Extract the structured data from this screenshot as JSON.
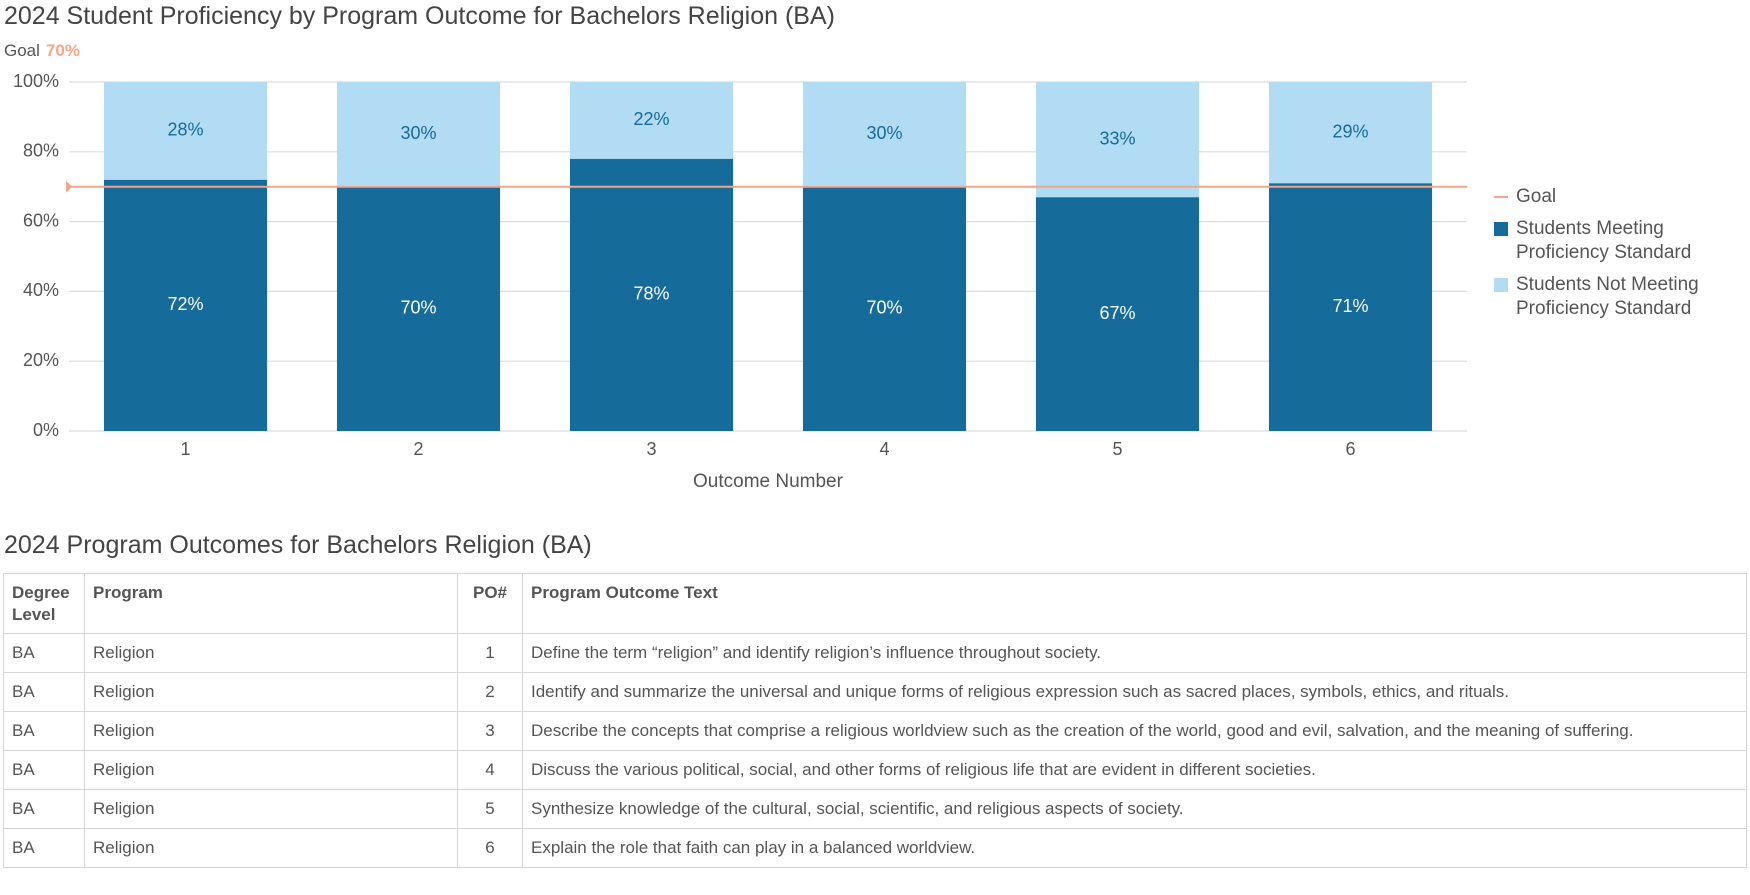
{
  "chart_data": {
    "type": "stacked_bar",
    "title": "2024 Student Proficiency by Program Outcome for Bachelors Religion (BA)",
    "x_label": "Outcome Number",
    "categories": [
      "1",
      "2",
      "3",
      "4",
      "5",
      "6"
    ],
    "series": [
      {
        "name": "Students Meeting Proficiency Standard",
        "color": "#156b9a",
        "label_color": "#ffffff",
        "values": [
          72,
          70,
          78,
          70,
          67,
          71
        ],
        "value_labels": [
          "72%",
          "70%",
          "78%",
          "70%",
          "67%",
          "71%"
        ]
      },
      {
        "name": "Students Not Meeting Proficiency Standard",
        "color": "#b1dcf4",
        "label_color": "#156b9a",
        "values": [
          28,
          30,
          22,
          30,
          33,
          29
        ],
        "value_labels": [
          "28%",
          "30%",
          "22%",
          "30%",
          "33%",
          "29%"
        ]
      }
    ],
    "goal": {
      "name": "Goal",
      "value": 70,
      "value_label": "70%",
      "color": "#f4a58a"
    },
    "ylim": [
      0,
      100
    ],
    "yticks": [
      {
        "value": 0,
        "label": "0%"
      },
      {
        "value": 20,
        "label": "20%"
      },
      {
        "value": 40,
        "label": "40%"
      },
      {
        "value": 60,
        "label": "60%"
      },
      {
        "value": 80,
        "label": "80%"
      },
      {
        "value": 100,
        "label": "100%"
      }
    ],
    "grid": true
  },
  "table": {
    "title": "2024 Program Outcomes for Bachelors Religion (BA)",
    "header": [
      "Degree Level",
      "Program",
      "PO#",
      "Program Outcome Text"
    ],
    "rows": [
      [
        "BA",
        "Religion",
        1,
        "Define the term “religion” and identify religion’s influence throughout society."
      ],
      [
        "BA",
        "Religion",
        2,
        "Identify and summarize the universal and unique forms of religious expression such as sacred places, symbols, ethics, and rituals."
      ],
      [
        "BA",
        "Religion",
        3,
        "Describe the concepts that comprise a religious worldview such as the creation of the world, good and evil, salvation, and the meaning of suffering."
      ],
      [
        "BA",
        "Religion",
        4,
        "Discuss the various political, social, and other forms of religious life that are evident in different societies."
      ],
      [
        "BA",
        "Religion",
        5,
        "Synthesize knowledge of the cultural, social, scientific, and religious aspects of society."
      ],
      [
        "BA",
        "Religion",
        6,
        "Explain the role that faith can play in a balanced worldview."
      ]
    ]
  }
}
